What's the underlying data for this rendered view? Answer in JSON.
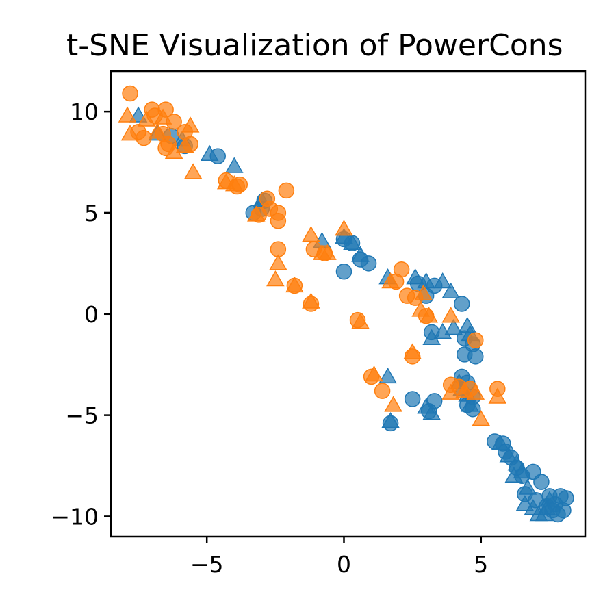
{
  "chart_data": {
    "type": "scatter",
    "title": "t-SNE Visualization of PowerCons",
    "xlabel": "",
    "ylabel": "",
    "xlim": [
      -8.5,
      8.8
    ],
    "ylim": [
      -11.0,
      12.0
    ],
    "xticks": [
      -5,
      0,
      5
    ],
    "yticks": [
      -10,
      -5,
      0,
      5,
      10
    ],
    "xtick_labels": [
      "−5",
      "0",
      "5"
    ],
    "ytick_labels": [
      "−10",
      "−5",
      "0",
      "5",
      "10"
    ],
    "grid": false,
    "legend": false,
    "colors": {
      "blue": "#1f77b4",
      "orange": "#ff7f0e"
    },
    "series": [
      {
        "color": "blue",
        "marker": "circle",
        "points": [
          [
            -6.3,
            8.8
          ],
          [
            -5.8,
            8.3
          ],
          [
            -4.6,
            7.8
          ],
          [
            -3.3,
            5.0
          ],
          [
            -3.0,
            5.2
          ],
          [
            -2.9,
            5.6
          ],
          [
            0.0,
            3.7
          ],
          [
            0.3,
            3.5
          ],
          [
            0.6,
            2.7
          ],
          [
            0.0,
            2.1
          ],
          [
            0.9,
            2.5
          ],
          [
            2.7,
            1.5
          ],
          [
            3.3,
            1.4
          ],
          [
            3.0,
            0.9
          ],
          [
            4.3,
            0.5
          ],
          [
            3.2,
            -0.9
          ],
          [
            4.4,
            -1.2
          ],
          [
            4.7,
            -1.5
          ],
          [
            4.4,
            -2.0
          ],
          [
            4.8,
            -2.1
          ],
          [
            4.3,
            -3.1
          ],
          [
            4.5,
            -3.4
          ],
          [
            4.7,
            -4.1
          ],
          [
            3.3,
            -4.3
          ],
          [
            2.5,
            -4.2
          ],
          [
            3.1,
            -4.8
          ],
          [
            4.7,
            -4.7
          ],
          [
            4.5,
            -4.5
          ],
          [
            1.7,
            -5.4
          ],
          [
            5.5,
            -6.3
          ],
          [
            5.8,
            -6.4
          ],
          [
            5.9,
            -6.8
          ],
          [
            6.1,
            -7.1
          ],
          [
            6.3,
            -7.6
          ],
          [
            6.5,
            -8.0
          ],
          [
            6.9,
            -7.8
          ],
          [
            7.2,
            -8.3
          ],
          [
            6.6,
            -8.9
          ],
          [
            7.0,
            -9.2
          ],
          [
            7.4,
            -9.5
          ],
          [
            7.7,
            -9.4
          ],
          [
            7.8,
            -9.9
          ],
          [
            8.0,
            -9.7
          ],
          [
            8.1,
            -9.1
          ],
          [
            7.9,
            -9.0
          ],
          [
            7.5,
            -9.0
          ],
          [
            7.6,
            -9.7
          ]
        ]
      },
      {
        "color": "blue",
        "marker": "triangle",
        "points": [
          [
            -7.5,
            9.8
          ],
          [
            -6.8,
            8.9
          ],
          [
            -5.9,
            8.6
          ],
          [
            -4.9,
            7.9
          ],
          [
            -4.0,
            7.3
          ],
          [
            -3.0,
            5.6
          ],
          [
            -0.8,
            3.6
          ],
          [
            0.0,
            3.8
          ],
          [
            0.3,
            3.5
          ],
          [
            0.6,
            2.9
          ],
          [
            1.6,
            1.8
          ],
          [
            2.6,
            1.8
          ],
          [
            3.0,
            1.6
          ],
          [
            3.6,
            1.6
          ],
          [
            3.9,
            1.1
          ],
          [
            3.6,
            -0.9
          ],
          [
            4.0,
            -0.7
          ],
          [
            4.5,
            -0.6
          ],
          [
            4.6,
            -1.0
          ],
          [
            3.2,
            -1.2
          ],
          [
            1.6,
            -3.1
          ],
          [
            4.2,
            -3.4
          ],
          [
            4.3,
            -3.7
          ],
          [
            4.5,
            -4.0
          ],
          [
            4.6,
            -4.5
          ],
          [
            3.0,
            -4.6
          ],
          [
            3.2,
            -4.9
          ],
          [
            1.7,
            -5.3
          ],
          [
            5.7,
            -6.4
          ],
          [
            6.0,
            -7.0
          ],
          [
            6.3,
            -7.4
          ],
          [
            6.5,
            -7.8
          ],
          [
            6.2,
            -8.0
          ],
          [
            6.7,
            -8.6
          ],
          [
            6.6,
            -9.4
          ],
          [
            6.9,
            -9.6
          ],
          [
            7.1,
            -9.9
          ],
          [
            7.4,
            -9.6
          ],
          [
            7.5,
            -9.2
          ],
          [
            7.3,
            -9.9
          ]
        ]
      },
      {
        "color": "orange",
        "marker": "circle",
        "points": [
          [
            -7.8,
            10.9
          ],
          [
            -7.0,
            10.1
          ],
          [
            -6.9,
            9.8
          ],
          [
            -6.5,
            10.1
          ],
          [
            -6.2,
            9.5
          ],
          [
            -6.6,
            8.9
          ],
          [
            -6.4,
            8.4
          ],
          [
            -5.8,
            9.0
          ],
          [
            -5.6,
            8.4
          ],
          [
            -6.5,
            8.2
          ],
          [
            -7.3,
            8.7
          ],
          [
            -7.5,
            9.0
          ],
          [
            -4.3,
            6.6
          ],
          [
            -3.9,
            6.3
          ],
          [
            -3.8,
            6.4
          ],
          [
            -2.8,
            5.7
          ],
          [
            -2.1,
            6.1
          ],
          [
            -2.4,
            5.0
          ],
          [
            -2.7,
            5.2
          ],
          [
            -2.4,
            4.6
          ],
          [
            -3.1,
            4.9
          ],
          [
            -2.4,
            3.2
          ],
          [
            -1.8,
            1.4
          ],
          [
            -1.2,
            0.5
          ],
          [
            -1.1,
            3.2
          ],
          [
            -0.7,
            3.0
          ],
          [
            0.5,
            -0.3
          ],
          [
            1.9,
            1.6
          ],
          [
            2.1,
            2.2
          ],
          [
            2.3,
            0.9
          ],
          [
            2.6,
            0.8
          ],
          [
            3.0,
            -0.1
          ],
          [
            4.8,
            -1.3
          ],
          [
            2.5,
            -2.1
          ],
          [
            1.0,
            -3.1
          ],
          [
            1.4,
            -3.8
          ],
          [
            3.9,
            -3.5
          ],
          [
            4.2,
            -3.6
          ],
          [
            4.6,
            -3.7
          ],
          [
            5.6,
            -3.7
          ]
        ]
      },
      {
        "color": "orange",
        "marker": "triangle",
        "points": [
          [
            -7.9,
            9.8
          ],
          [
            -7.8,
            8.9
          ],
          [
            -7.2,
            9.6
          ],
          [
            -6.8,
            9.0
          ],
          [
            -6.6,
            9.7
          ],
          [
            -5.8,
            8.3
          ],
          [
            -5.6,
            9.3
          ],
          [
            -6.2,
            8.0
          ],
          [
            -5.5,
            7.0
          ],
          [
            -4.3,
            6.5
          ],
          [
            -4.0,
            6.4
          ],
          [
            -3.2,
            4.9
          ],
          [
            -2.4,
            2.5
          ],
          [
            -2.5,
            1.7
          ],
          [
            -1.8,
            1.4
          ],
          [
            -1.2,
            0.6
          ],
          [
            -1.2,
            3.9
          ],
          [
            -0.8,
            3.0
          ],
          [
            -0.6,
            3.0
          ],
          [
            0.0,
            4.2
          ],
          [
            0.6,
            -0.4
          ],
          [
            1.1,
            -3.0
          ],
          [
            1.7,
            1.6
          ],
          [
            2.9,
            1.0
          ],
          [
            2.8,
            0.2
          ],
          [
            3.1,
            -0.1
          ],
          [
            3.9,
            -0.1
          ],
          [
            2.5,
            -1.9
          ],
          [
            1.8,
            -4.5
          ],
          [
            3.9,
            -3.9
          ],
          [
            4.4,
            -3.8
          ],
          [
            4.8,
            -3.9
          ],
          [
            5.0,
            -5.2
          ],
          [
            5.6,
            -4.1
          ]
        ]
      }
    ]
  }
}
